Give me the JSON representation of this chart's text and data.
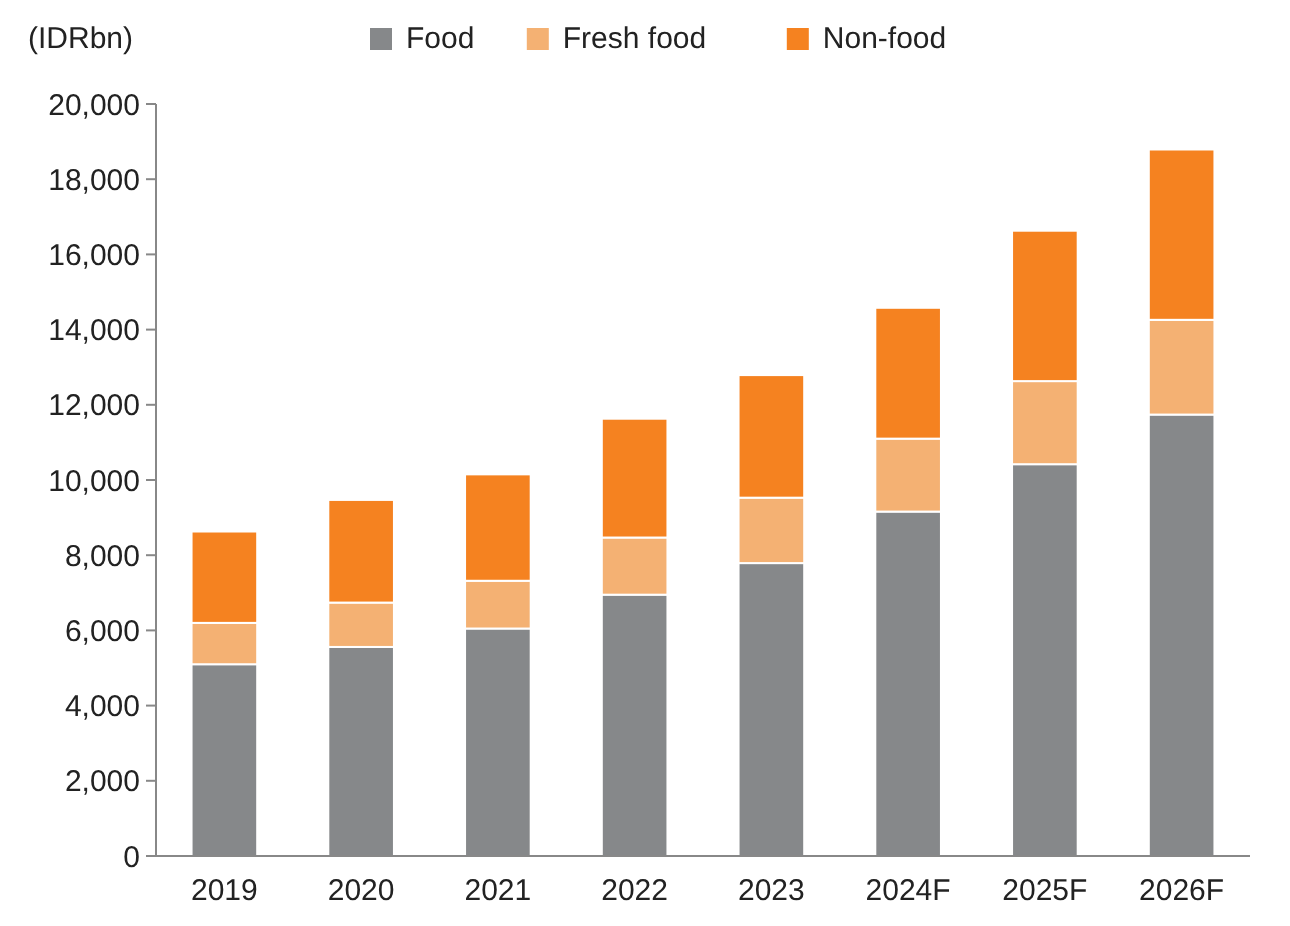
{
  "chart_data": {
    "type": "bar",
    "stacked": true,
    "ylabel": "(IDRbn)",
    "categories": [
      "2019",
      "2020",
      "2021",
      "2022",
      "2023",
      "2024F",
      "2025F",
      "2026F"
    ],
    "series": [
      {
        "name": "Food",
        "color": "#86888a",
        "values": [
          5100,
          5560,
          6050,
          6950,
          7790,
          9160,
          10420,
          11740
        ]
      },
      {
        "name": "Fresh food",
        "color": "#f4b173",
        "values": [
          1100,
          1180,
          1270,
          1520,
          1740,
          1940,
          2210,
          2520
        ]
      },
      {
        "name": "Non-food",
        "color": "#f58220",
        "values": [
          2430,
          2730,
          2830,
          3160,
          3260,
          3480,
          4000,
          4530
        ]
      }
    ],
    "ylim": [
      0,
      20000
    ],
    "yticks": [
      {
        "value": 0,
        "label": "0"
      },
      {
        "value": 2000,
        "label": "2,000"
      },
      {
        "value": 4000,
        "label": "4,000"
      },
      {
        "value": 6000,
        "label": "6,000"
      },
      {
        "value": 8000,
        "label": "8,000"
      },
      {
        "value": 10000,
        "label": "10,000"
      },
      {
        "value": 12000,
        "label": "12,000"
      },
      {
        "value": 14000,
        "label": "14,000"
      },
      {
        "value": 16000,
        "label": "16,000"
      },
      {
        "value": 18000,
        "label": "18,000"
      },
      {
        "value": 20000,
        "label": "20,000"
      }
    ],
    "legend": "top"
  }
}
